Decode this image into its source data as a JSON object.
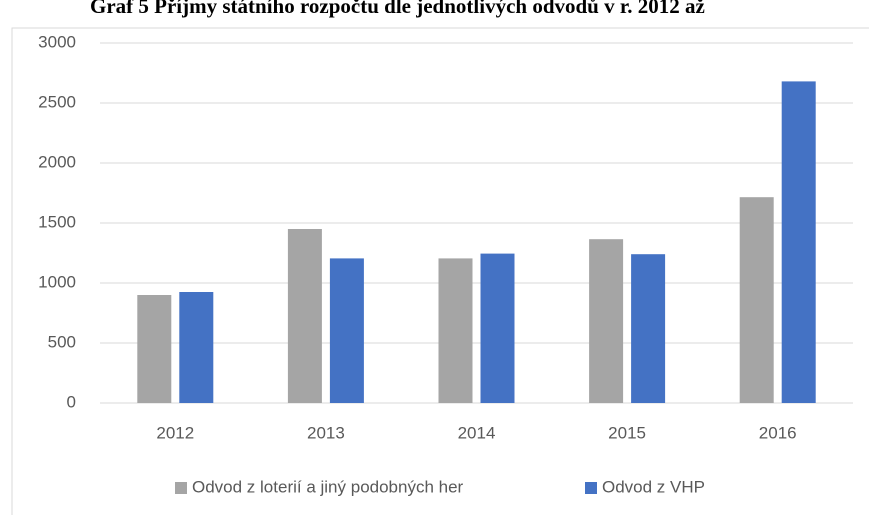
{
  "chart_data": {
    "type": "bar",
    "title": "Graf 5 Příjmy státního rozpočtu dle jednotlivých odvodů v r. 2012 až",
    "categories": [
      "2012",
      "2013",
      "2014",
      "2015",
      "2016"
    ],
    "series": [
      {
        "name": "Odvod z loterií a jiný podobných her",
        "color": "#a5a5a5",
        "values": [
          900,
          1450,
          1205,
          1365,
          1715
        ]
      },
      {
        "name": "Odvod z VHP",
        "color": "#4472c4",
        "values": [
          925,
          1205,
          1245,
          1240,
          2680
        ]
      }
    ],
    "ylim": [
      0,
      3000
    ],
    "yticks": [
      0,
      500,
      1000,
      1500,
      2000,
      2500,
      3000
    ],
    "grid": true,
    "legend": "bottom"
  }
}
